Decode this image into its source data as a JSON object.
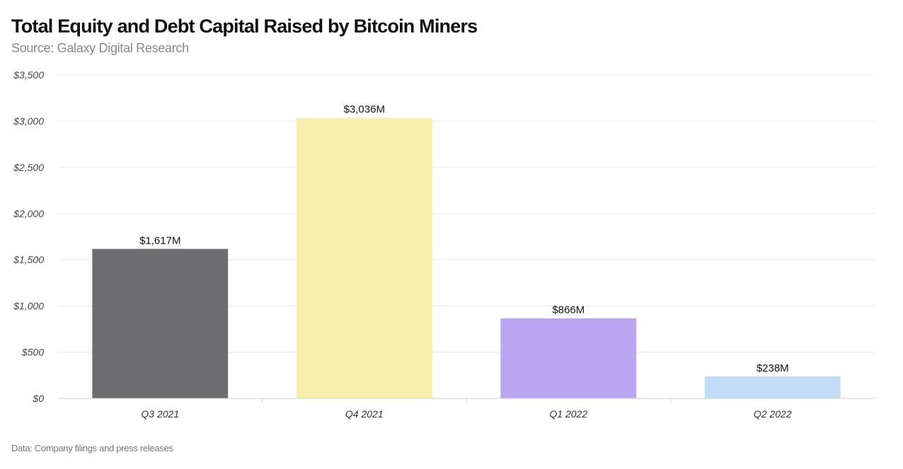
{
  "title": "Total Equity and Debt Capital Raised by Bitcoin Miners",
  "subtitle": "Source: Galaxy Digital Research",
  "footnote": "Data: Company filings and press releases",
  "chart_data": {
    "type": "bar",
    "title": "Total Equity and Debt Capital Raised by Bitcoin Miners",
    "subtitle": "Source: Galaxy Digital Research",
    "categories": [
      "Q3 2021",
      "Q4 2021",
      "Q1 2022",
      "Q2 2022"
    ],
    "values": [
      1617,
      3036,
      866,
      238
    ],
    "data_labels": [
      "$1,617M",
      "$3,036M",
      "$866M",
      "$238M"
    ],
    "colors": [
      "#6d6d6f",
      "#f7efac",
      "#b9a6f2",
      "#c2dcf7"
    ],
    "xlabel": "",
    "ylabel": "",
    "ylim": [
      0,
      3500
    ],
    "yticks": [
      0,
      500,
      1000,
      1500,
      2000,
      2500,
      3000,
      3500
    ],
    "ytick_labels": [
      "$0",
      "$500",
      "$1,000",
      "$1,500",
      "$2,000",
      "$2,500",
      "$3,000",
      "$3,500"
    ],
    "grid": true,
    "legend": false
  }
}
